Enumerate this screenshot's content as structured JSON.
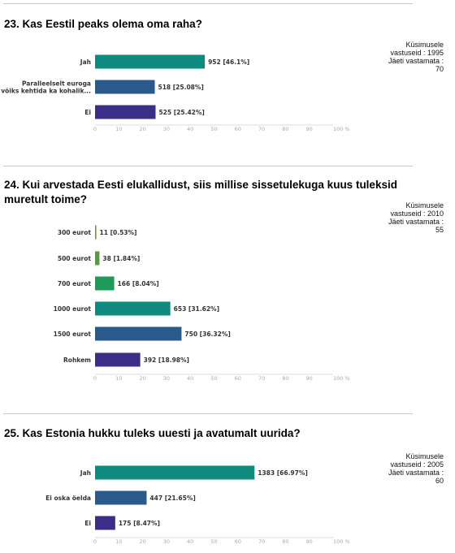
{
  "questions": [
    {
      "title": "23. Kas Eestil peaks olema oma raha?",
      "stats": {
        "respondents_label": "Küsimusele",
        "respondents_label2": "vastuseid : 1995",
        "skipped_label": "Jäeti vastamata :",
        "skipped_value": "70"
      }
    },
    {
      "title": "24. Kui arvestada Eesti elukallidust, siis millise sissetulekuga kuus tuleksid muretult toime?",
      "stats": {
        "respondents_label": "Küsimusele",
        "respondents_label2": "vastuseid : 2010",
        "skipped_label": "Jäeti vastamata :",
        "skipped_value": "55"
      }
    },
    {
      "title": "25. Kas Estonia hukku tuleks uuesti ja avatumalt uurida?",
      "stats": {
        "respondents_label": "Küsimusele",
        "respondents_label2": "vastuseid : 2005",
        "skipped_label": "Jäeti vastamata :",
        "skipped_value": "60"
      }
    }
  ],
  "chart_data": [
    {
      "type": "bar",
      "orientation": "horizontal",
      "categories": [
        [
          "Jah"
        ],
        [
          "Paralleelselt euroga",
          "võiks kehtida ka kohalik..."
        ],
        [
          "Ei"
        ]
      ],
      "values": [
        46.1,
        25.08,
        25.42
      ],
      "labels": [
        "952 [46.1%]",
        "518 [25.08%]",
        "525 [25.42%]"
      ],
      "colors": [
        "#0e8a7e",
        "#2a5a8c",
        "#3a2e86"
      ],
      "xticks": [
        "0",
        "10",
        "20",
        "30",
        "40",
        "50",
        "60",
        "70",
        "80",
        "90",
        "100 %"
      ],
      "xlim": [
        0,
        100
      ]
    },
    {
      "type": "bar",
      "orientation": "horizontal",
      "categories": [
        [
          "300 eurot"
        ],
        [
          "500 eurot"
        ],
        [
          "700 eurot"
        ],
        [
          "1000 eurot"
        ],
        [
          "1500 eurot"
        ],
        [
          "Rohkem"
        ]
      ],
      "values": [
        0.53,
        1.84,
        8.04,
        31.62,
        36.32,
        18.98
      ],
      "labels": [
        "11 [0.53%]",
        "38 [1.84%]",
        "166 [8.04%]",
        "653 [31.62%]",
        "750 [36.32%]",
        "392 [18.98%]"
      ],
      "colors": [
        "#7a8a2e",
        "#5a9a3a",
        "#1e9a5a",
        "#0e8a7e",
        "#2a5a8c",
        "#3a2e86"
      ],
      "xticks": [
        "0",
        "10",
        "20",
        "30",
        "40",
        "50",
        "60",
        "70",
        "80",
        "90",
        "100 %"
      ],
      "xlim": [
        0,
        100
      ]
    },
    {
      "type": "bar",
      "orientation": "horizontal",
      "categories": [
        [
          "Jah"
        ],
        [
          "Ei oska öelda"
        ],
        [
          "Ei"
        ]
      ],
      "values": [
        66.97,
        21.65,
        8.47
      ],
      "labels": [
        "1383 [66.97%]",
        "447 [21.65%]",
        "175 [8.47%]"
      ],
      "colors": [
        "#0e8a7e",
        "#2a5a8c",
        "#3a2e86"
      ],
      "xticks": [
        "0",
        "10",
        "20",
        "30",
        "40",
        "50",
        "60",
        "70",
        "80",
        "90",
        "100 %"
      ],
      "xlim": [
        0,
        100
      ]
    }
  ]
}
